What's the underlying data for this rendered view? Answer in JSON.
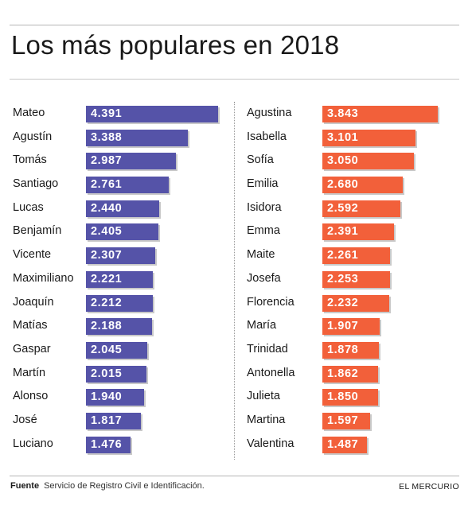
{
  "header": {
    "title": "Los más populares en 2018"
  },
  "colors": {
    "boys_bar": "#5553a8",
    "girls_bar": "#f2603a"
  },
  "footer": {
    "source_label": "Fuente",
    "source_text": "Servicio de Registro Civil e Identificación.",
    "brand": "EL MERCURIO"
  },
  "chart_data": [
    {
      "type": "bar",
      "orientation": "horizontal",
      "categories": [
        "Mateo",
        "Agustín",
        "Tomás",
        "Santiago",
        "Lucas",
        "Benjamín",
        "Vicente",
        "Maximiliano",
        "Joaquín",
        "Matías",
        "Gaspar",
        "Martín",
        "Alonso",
        "José",
        "Luciano"
      ],
      "values": [
        4391,
        3388,
        2987,
        2761,
        2440,
        2405,
        2307,
        2221,
        2212,
        2188,
        2045,
        2015,
        1940,
        1817,
        1476
      ],
      "value_labels": [
        "4.391",
        "3.388",
        "2.987",
        "2.761",
        "2.440",
        "2.405",
        "2.307",
        "2.221",
        "2.212",
        "2.188",
        "2.045",
        "2.015",
        "1.940",
        "1.817",
        "1.476"
      ],
      "xlim": [
        0,
        4391
      ],
      "grid": false
    },
    {
      "type": "bar",
      "orientation": "horizontal",
      "categories": [
        "Agustina",
        "Isabella",
        "Sofía",
        "Emilia",
        "Isidora",
        "Emma",
        "Maite",
        "Josefa",
        "Florencia",
        "María",
        "Trinidad",
        "Antonella",
        "Julieta",
        "Martina",
        "Valentina"
      ],
      "values": [
        3843,
        3101,
        3050,
        2680,
        2592,
        2391,
        2261,
        2253,
        2232,
        1907,
        1878,
        1862,
        1850,
        1597,
        1487
      ],
      "value_labels": [
        "3.843",
        "3.101",
        "3.050",
        "2.680",
        "2.592",
        "2.391",
        "2.261",
        "2.253",
        "2.232",
        "1.907",
        "1.878",
        "1.862",
        "1.850",
        "1.597",
        "1.487"
      ],
      "xlim": [
        0,
        4391
      ],
      "grid": false
    }
  ]
}
